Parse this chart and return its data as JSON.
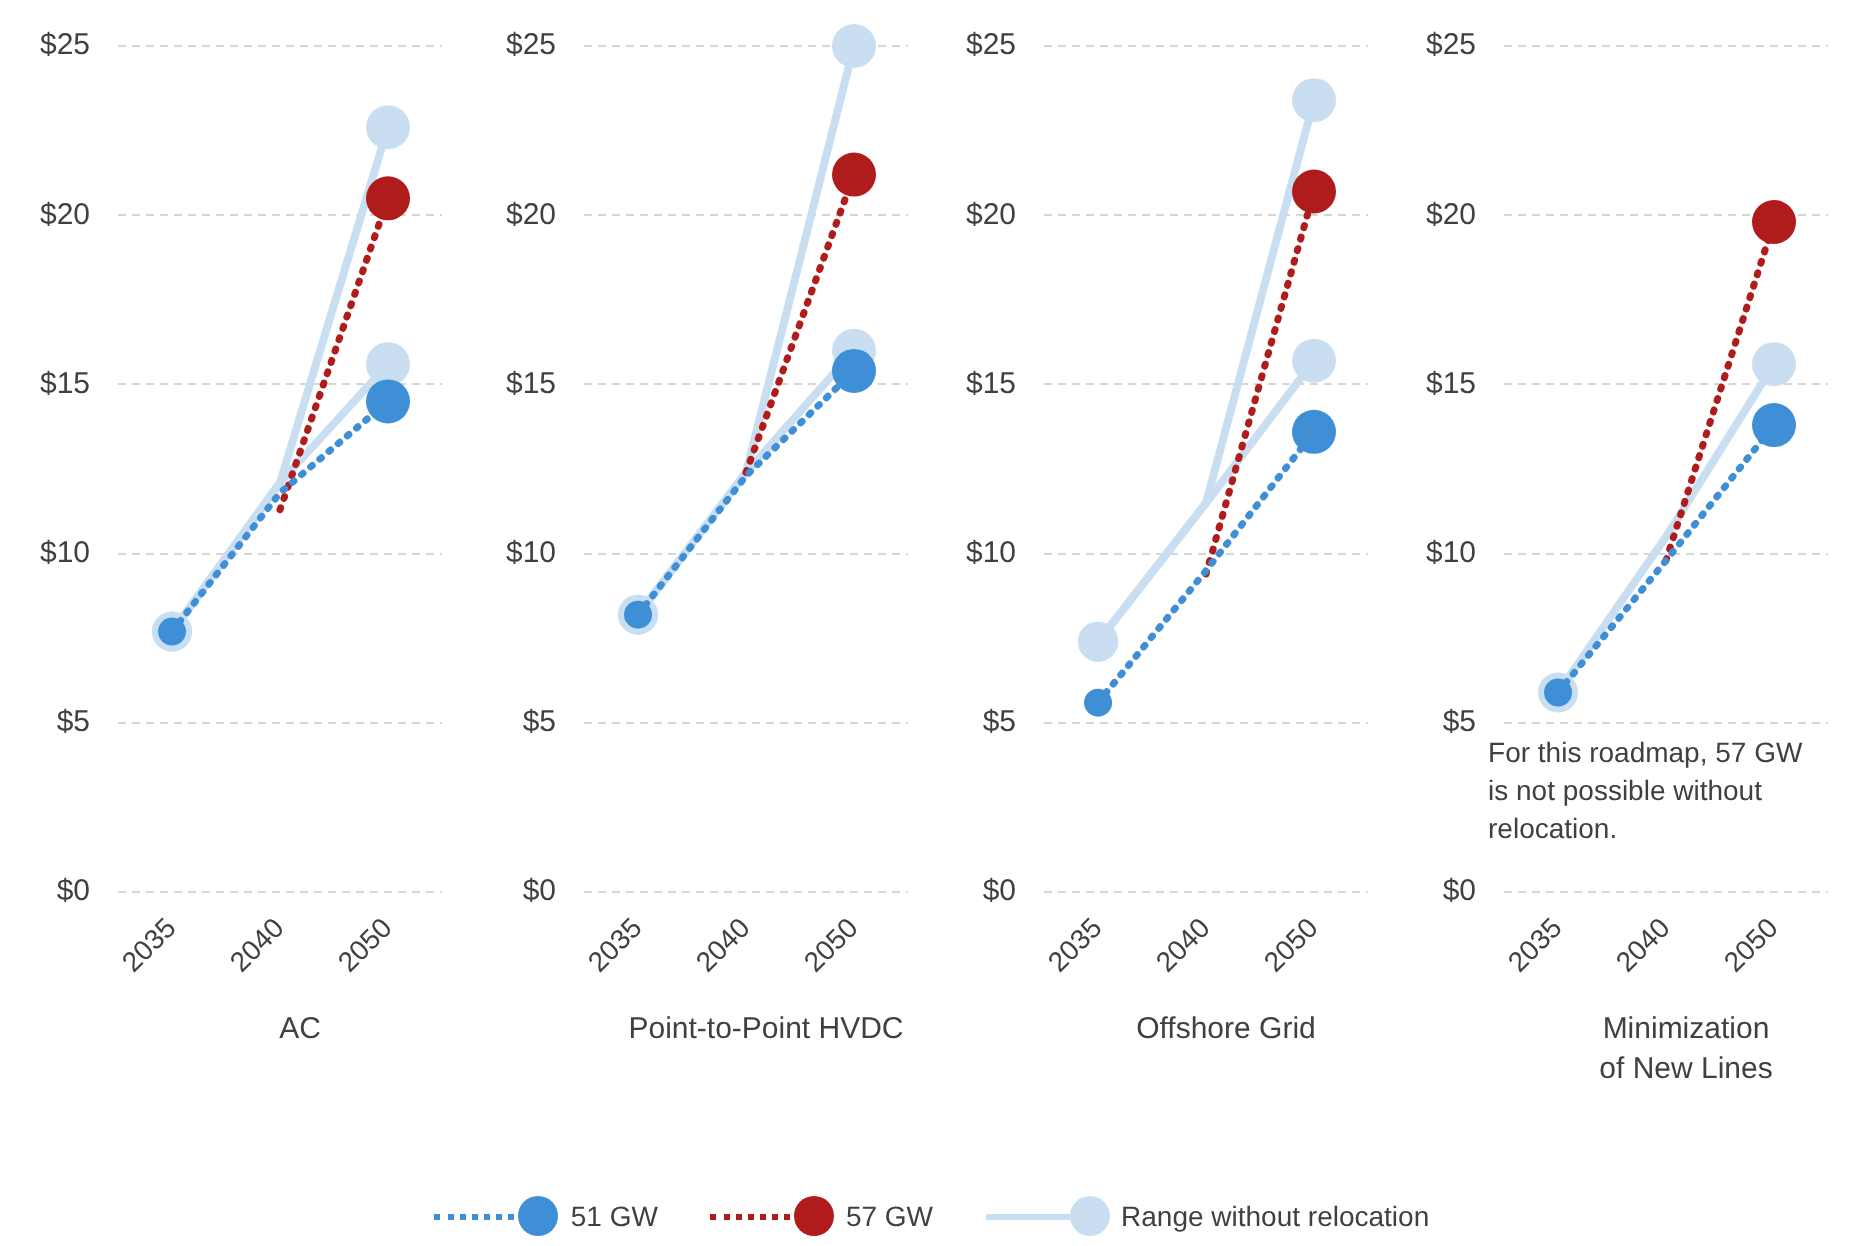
{
  "chart_data": [
    {
      "type": "line",
      "xlabel": "AC",
      "categories": [
        "2035",
        "2040",
        "2050"
      ],
      "ylim": [
        0,
        25
      ],
      "yticks": [
        {
          "value": 0,
          "label": "$0"
        },
        {
          "value": 5,
          "label": "$5"
        },
        {
          "value": 10,
          "label": "$10"
        },
        {
          "value": 15,
          "label": "$15"
        },
        {
          "value": 20,
          "label": "$20"
        },
        {
          "value": 25,
          "label": "$25"
        }
      ],
      "grid": "y",
      "marker": "circle",
      "legend": "bottom",
      "series": [
        {
          "name": "51 GW",
          "color": "#3f8fd6",
          "line_style": "dotted",
          "values": [
            7.7,
            11.8,
            14.5
          ]
        },
        {
          "name": "57 GW",
          "color": "#b01c1c",
          "line_style": "dotted",
          "values": [
            null,
            11.3,
            20.5
          ]
        },
        {
          "name": "Range without relocation",
          "color": "#c9dff1",
          "line_style": "solid",
          "values": [
            7.7,
            12.1,
            22.6
          ]
        },
        {
          "color": "#c9dff1",
          "line_style": "solid",
          "values": [
            7.7,
            12.1,
            15.6
          ]
        }
      ]
    },
    {
      "type": "line",
      "xlabel": "Point-to-Point HVDC",
      "categories": [
        "2035",
        "2040",
        "2050"
      ],
      "ylim": [
        0,
        25
      ],
      "yticks": [
        {
          "value": 0,
          "label": "$0"
        },
        {
          "value": 5,
          "label": "$5"
        },
        {
          "value": 10,
          "label": "$10"
        },
        {
          "value": 15,
          "label": "$15"
        },
        {
          "value": 20,
          "label": "$20"
        },
        {
          "value": 25,
          "label": "$25"
        }
      ],
      "grid": "y",
      "marker": "circle",
      "series": [
        {
          "name": "51 GW",
          "color": "#3f8fd6",
          "line_style": "dotted",
          "values": [
            8.2,
            12.3,
            15.4
          ]
        },
        {
          "name": "57 GW",
          "color": "#b01c1c",
          "line_style": "dotted",
          "values": [
            null,
            12.4,
            21.2
          ]
        },
        {
          "name": "Range without relocation",
          "color": "#c9dff1",
          "line_style": "solid",
          "values": [
            8.2,
            12.4,
            25
          ]
        },
        {
          "color": "#c9dff1",
          "line_style": "solid",
          "values": [
            8.2,
            12.4,
            16.0
          ]
        }
      ]
    },
    {
      "type": "line",
      "xlabel": "Offshore Grid",
      "categories": [
        "2035",
        "2040",
        "2050"
      ],
      "ylim": [
        0,
        25
      ],
      "yticks": [
        {
          "value": 0,
          "label": "$0"
        },
        {
          "value": 5,
          "label": "$5"
        },
        {
          "value": 10,
          "label": "$10"
        },
        {
          "value": 15,
          "label": "$15"
        },
        {
          "value": 20,
          "label": "$20"
        },
        {
          "value": 25,
          "label": "$25"
        }
      ],
      "grid": "y",
      "marker": "circle",
      "series": [
        {
          "name": "51 GW",
          "color": "#3f8fd6",
          "line_style": "dotted",
          "values": [
            5.6,
            9.5,
            13.6
          ]
        },
        {
          "name": "57 GW",
          "color": "#b01c1c",
          "line_style": "dotted",
          "values": [
            null,
            9.4,
            20.7
          ]
        },
        {
          "name": "Range without relocation",
          "color": "#c9dff1",
          "line_style": "solid",
          "values": [
            7.4,
            11.5,
            23.4
          ]
        },
        {
          "color": "#c9dff1",
          "line_style": "solid",
          "values": [
            7.4,
            11.5,
            15.7
          ]
        }
      ]
    },
    {
      "type": "line",
      "xlabel": "Minimization of New Lines",
      "categories": [
        "2035",
        "2040",
        "2050"
      ],
      "ylim": [
        0,
        25
      ],
      "yticks": [
        {
          "value": 0,
          "label": "$0"
        },
        {
          "value": 5,
          "label": "$5"
        },
        {
          "value": 10,
          "label": "$10"
        },
        {
          "value": 15,
          "label": "$15"
        },
        {
          "value": 20,
          "label": "$20"
        },
        {
          "value": 25,
          "label": "$25"
        }
      ],
      "grid": "y",
      "marker": "circle",
      "annotations": [
        "For this roadmap, 57 GW is not possible without relocation."
      ],
      "series": [
        {
          "name": "51 GW",
          "color": "#3f8fd6",
          "line_style": "dotted",
          "values": [
            5.9,
            9.8,
            13.8
          ]
        },
        {
          "name": "57 GW",
          "color": "#b01c1c",
          "line_style": "dotted",
          "values": [
            null,
            9.8,
            19.8
          ]
        },
        {
          "name": "Range without relocation",
          "color": "#c9dff1",
          "line_style": "solid",
          "values": [
            5.9,
            10.5,
            15.6
          ]
        }
      ]
    }
  ]
}
